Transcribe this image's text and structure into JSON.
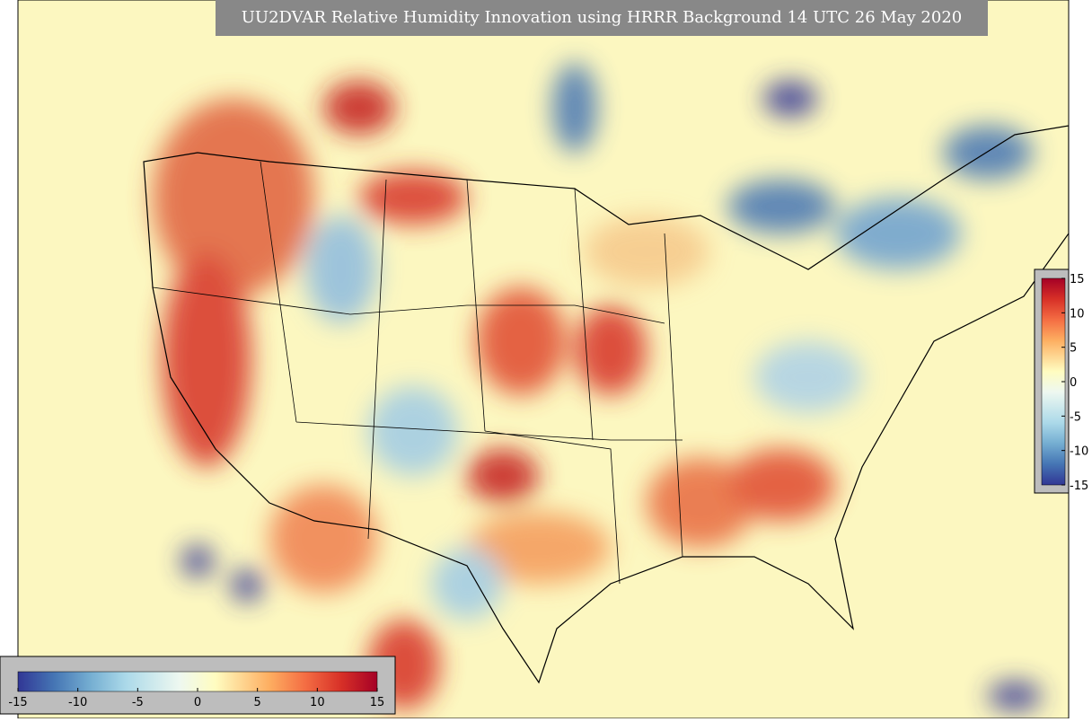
{
  "title": "UU2DVAR Relative Humidity Innovation using HRRR Background 14 UTC 26 May 2020",
  "colorbar": {
    "range": [
      -15,
      15
    ],
    "ticks": [
      -15,
      -10,
      -5,
      0,
      5,
      10,
      15
    ]
  }
}
